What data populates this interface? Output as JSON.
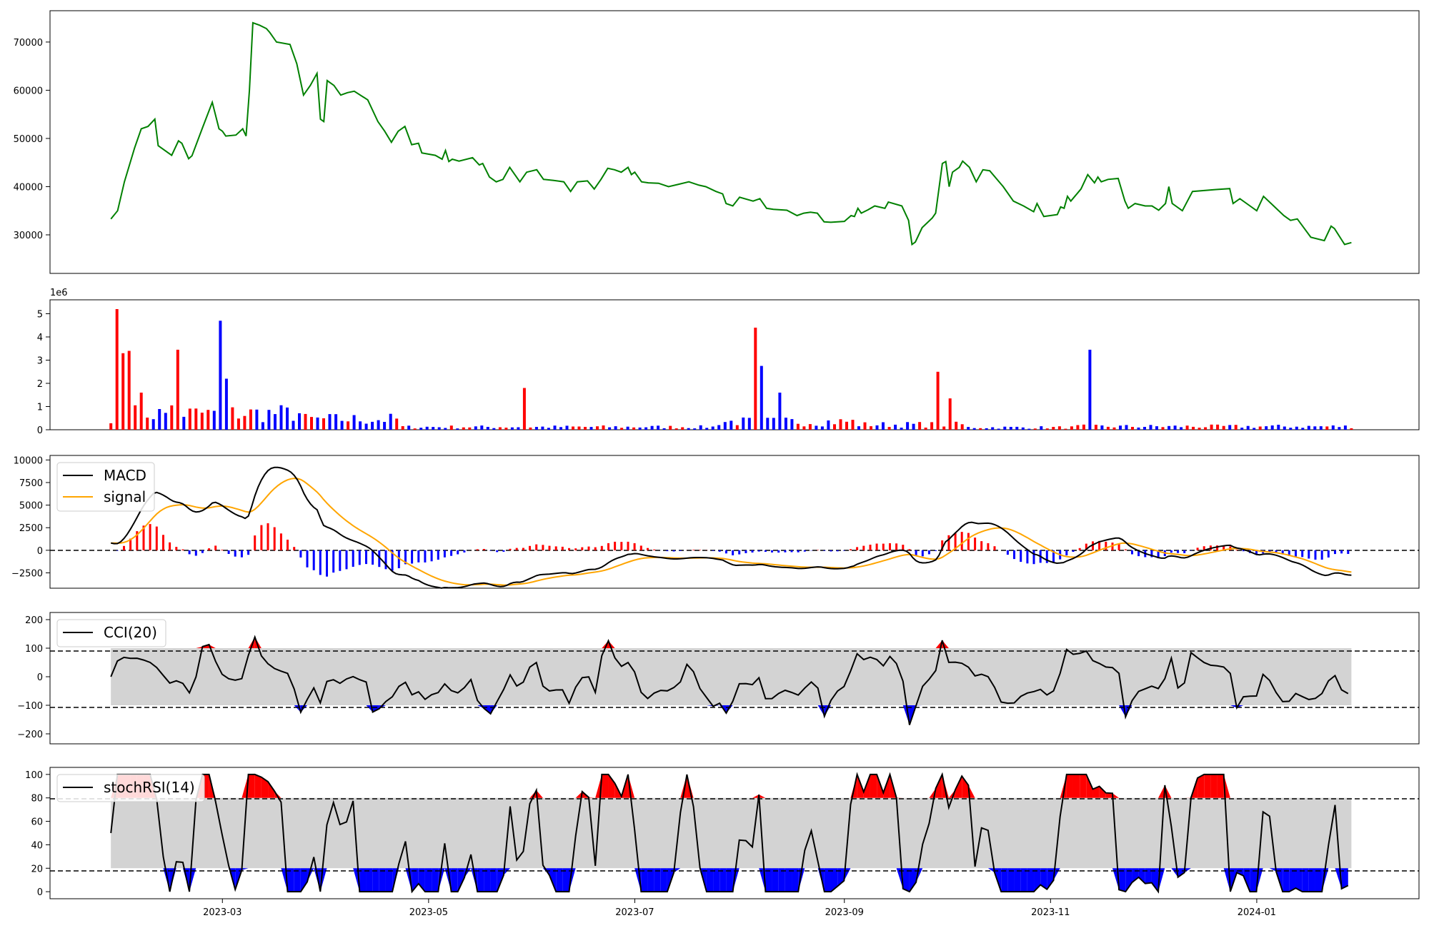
{
  "colors": {
    "price": "#008000",
    "up": "#ff0000",
    "down": "#0000ff",
    "macd": "#000000",
    "signal": "#ffa500",
    "band": "#d3d3d3",
    "axis": "#000000"
  },
  "chart_data": [
    {
      "type": "line",
      "x_start": "2023-01-27",
      "x_end": "2024-01-29",
      "xlim": [
        "2023-01-09",
        "2024-02-18"
      ],
      "ylim": [
        22000,
        76500
      ],
      "yticks": [
        30000,
        40000,
        50000,
        60000,
        70000
      ],
      "series": [
        {
          "points": [
            [
              "2023-01-27",
              33300
            ],
            [
              "2023-01-29",
              35000
            ],
            [
              "2023-01-31",
              41000
            ],
            [
              "2023-02-03",
              48000
            ],
            [
              "2023-02-05",
              52000
            ],
            [
              "2023-02-07",
              52500
            ],
            [
              "2023-02-09",
              54000
            ],
            [
              "2023-02-10",
              48500
            ],
            [
              "2023-02-14",
              46500
            ],
            [
              "2023-02-16",
              49500
            ],
            [
              "2023-02-17",
              49000
            ],
            [
              "2023-02-19",
              45800
            ],
            [
              "2023-02-20",
              46400
            ],
            [
              "2023-02-23",
              52000
            ],
            [
              "2023-02-26",
              57500
            ],
            [
              "2023-02-28",
              52000
            ],
            [
              "2023-03-01",
              51500
            ],
            [
              "2023-03-02",
              50500
            ],
            [
              "2023-03-05",
              50700
            ],
            [
              "2023-03-07",
              52000
            ],
            [
              "2023-03-08",
              50500
            ],
            [
              "2023-03-09",
              60000
            ],
            [
              "2023-03-10",
              74000
            ],
            [
              "2023-03-12",
              73500
            ],
            [
              "2023-03-14",
              72800
            ],
            [
              "2023-03-15",
              72000
            ],
            [
              "2023-03-17",
              70000
            ],
            [
              "2023-03-21",
              69500
            ],
            [
              "2023-03-23",
              65500
            ],
            [
              "2023-03-25",
              59000
            ],
            [
              "2023-03-27",
              61000
            ],
            [
              "2023-03-29",
              63500
            ],
            [
              "2023-03-30",
              54000
            ],
            [
              "2023-03-31",
              53500
            ],
            [
              "2023-04-01",
              62000
            ],
            [
              "2023-04-03",
              61000
            ],
            [
              "2023-04-05",
              59000
            ],
            [
              "2023-04-07",
              59500
            ],
            [
              "2023-04-09",
              59800
            ],
            [
              "2023-04-13",
              58000
            ],
            [
              "2023-04-16",
              53500
            ],
            [
              "2023-04-18",
              51500
            ],
            [
              "2023-04-20",
              49200
            ],
            [
              "2023-04-22",
              51500
            ],
            [
              "2023-04-24",
              52500
            ],
            [
              "2023-04-26",
              48700
            ],
            [
              "2023-04-28",
              49000
            ],
            [
              "2023-04-29",
              47000
            ],
            [
              "2023-05-03",
              46500
            ],
            [
              "2023-05-05",
              45700
            ],
            [
              "2023-05-06",
              47500
            ],
            [
              "2023-05-07",
              45200
            ],
            [
              "2023-05-08",
              45700
            ],
            [
              "2023-05-10",
              45300
            ],
            [
              "2023-05-14",
              46000
            ],
            [
              "2023-05-16",
              44500
            ],
            [
              "2023-05-17",
              44800
            ],
            [
              "2023-05-19",
              42000
            ],
            [
              "2023-05-21",
              41000
            ],
            [
              "2023-05-23",
              41500
            ],
            [
              "2023-05-25",
              44000
            ],
            [
              "2023-05-28",
              41000
            ],
            [
              "2023-05-30",
              43000
            ],
            [
              "2023-06-02",
              43500
            ],
            [
              "2023-06-04",
              41500
            ],
            [
              "2023-06-07",
              41300
            ],
            [
              "2023-06-10",
              41000
            ],
            [
              "2023-06-12",
              39000
            ],
            [
              "2023-06-14",
              41000
            ],
            [
              "2023-06-17",
              41200
            ],
            [
              "2023-06-19",
              39500
            ],
            [
              "2023-06-21",
              41500
            ],
            [
              "2023-06-23",
              43800
            ],
            [
              "2023-06-25",
              43500
            ],
            [
              "2023-06-27",
              43000
            ],
            [
              "2023-06-29",
              44000
            ],
            [
              "2023-06-30",
              42500
            ],
            [
              "2023-07-01",
              43000
            ],
            [
              "2023-07-03",
              41000
            ],
            [
              "2023-07-05",
              40800
            ],
            [
              "2023-07-08",
              40700
            ],
            [
              "2023-07-11",
              40000
            ],
            [
              "2023-07-14",
              40500
            ],
            [
              "2023-07-17",
              41000
            ],
            [
              "2023-07-20",
              40300
            ],
            [
              "2023-07-22",
              40000
            ],
            [
              "2023-07-25",
              39000
            ],
            [
              "2023-07-27",
              38500
            ],
            [
              "2023-07-28",
              36500
            ],
            [
              "2023-07-30",
              36000
            ],
            [
              "2023-08-01",
              37800
            ],
            [
              "2023-08-05",
              37000
            ],
            [
              "2023-08-07",
              37500
            ],
            [
              "2023-08-09",
              35500
            ],
            [
              "2023-08-11",
              35300
            ],
            [
              "2023-08-15",
              35100
            ],
            [
              "2023-08-18",
              34000
            ],
            [
              "2023-08-20",
              34500
            ],
            [
              "2023-08-22",
              34700
            ],
            [
              "2023-08-24",
              34500
            ],
            [
              "2023-08-26",
              32700
            ],
            [
              "2023-08-28",
              32600
            ],
            [
              "2023-09-01",
              32800
            ],
            [
              "2023-09-03",
              34000
            ],
            [
              "2023-09-04",
              33800
            ],
            [
              "2023-09-05",
              35500
            ],
            [
              "2023-09-06",
              34500
            ],
            [
              "2023-09-08",
              35200
            ],
            [
              "2023-09-10",
              36000
            ],
            [
              "2023-09-13",
              35500
            ],
            [
              "2023-09-14",
              36800
            ],
            [
              "2023-09-18",
              36000
            ],
            [
              "2023-09-20",
              33000
            ],
            [
              "2023-09-21",
              28000
            ],
            [
              "2023-09-22",
              28500
            ],
            [
              "2023-09-24",
              31500
            ],
            [
              "2023-09-27",
              33500
            ],
            [
              "2023-09-28",
              34500
            ],
            [
              "2023-09-30",
              44800
            ],
            [
              "2023-10-01",
              45200
            ],
            [
              "2023-10-02",
              40000
            ],
            [
              "2023-10-03",
              43000
            ],
            [
              "2023-10-05",
              44000
            ],
            [
              "2023-10-06",
              45300
            ],
            [
              "2023-10-08",
              44000
            ],
            [
              "2023-10-10",
              41000
            ],
            [
              "2023-10-12",
              43500
            ],
            [
              "2023-10-14",
              43300
            ],
            [
              "2023-10-18",
              40000
            ],
            [
              "2023-10-21",
              37000
            ],
            [
              "2023-10-24",
              36000
            ],
            [
              "2023-10-27",
              34800
            ],
            [
              "2023-10-28",
              36500
            ],
            [
              "2023-10-30",
              33800
            ],
            [
              "2023-11-03",
              34200
            ],
            [
              "2023-11-04",
              35800
            ],
            [
              "2023-11-05",
              35500
            ],
            [
              "2023-11-06",
              38000
            ],
            [
              "2023-11-07",
              37000
            ],
            [
              "2023-11-10",
              39500
            ],
            [
              "2023-11-12",
              42500
            ],
            [
              "2023-11-14",
              40800
            ],
            [
              "2023-11-15",
              42000
            ],
            [
              "2023-11-16",
              41000
            ],
            [
              "2023-11-18",
              41500
            ],
            [
              "2023-11-21",
              41700
            ],
            [
              "2023-11-23",
              37000
            ],
            [
              "2023-11-24",
              35500
            ],
            [
              "2023-11-26",
              36500
            ],
            [
              "2023-11-29",
              36000
            ],
            [
              "2023-12-01",
              36000
            ],
            [
              "2023-12-03",
              35100
            ],
            [
              "2023-12-05",
              36500
            ],
            [
              "2023-12-06",
              40000
            ],
            [
              "2023-12-07",
              36500
            ],
            [
              "2023-12-10",
              35000
            ],
            [
              "2023-12-13",
              39000
            ],
            [
              "2023-12-20",
              39400
            ],
            [
              "2023-12-24",
              39600
            ],
            [
              "2023-12-25",
              36500
            ],
            [
              "2023-12-27",
              37500
            ],
            [
              "2023-12-30",
              36000
            ],
            [
              "2024-01-01",
              35000
            ],
            [
              "2024-01-03",
              38000
            ],
            [
              "2024-01-06",
              36000
            ],
            [
              "2024-01-09",
              34000
            ],
            [
              "2024-01-11",
              33000
            ],
            [
              "2024-01-13",
              33300
            ],
            [
              "2024-01-17",
              29500
            ],
            [
              "2024-01-21",
              28800
            ],
            [
              "2024-01-23",
              31800
            ],
            [
              "2024-01-24",
              31300
            ],
            [
              "2024-01-27",
              28000
            ],
            [
              "2024-01-29",
              28400
            ]
          ]
        }
      ]
    }
  ],
  "axes_labels": {
    "volume_offset": "1e6",
    "xticks": [
      "2023-03",
      "2023-05",
      "2023-07",
      "2023-09",
      "2023-11",
      "2024-01"
    ],
    "volume_yticks": [
      "0",
      "1",
      "2",
      "3",
      "4",
      "5"
    ],
    "macd_yticks": [
      "−2500",
      "0",
      "2500",
      "5000",
      "7500",
      "10000"
    ],
    "cci_yticks": [
      "−200",
      "−100",
      "0",
      "100",
      "200"
    ],
    "rsi_yticks": [
      "0",
      "20",
      "40",
      "60",
      "80",
      "100"
    ],
    "price_yticks": [
      "30000",
      "40000",
      "50000",
      "60000",
      "70000"
    ]
  },
  "legends": {
    "macd": "MACD",
    "signal": "signal",
    "cci": "CCI(20)",
    "rsi": "stochRSI(14)"
  }
}
